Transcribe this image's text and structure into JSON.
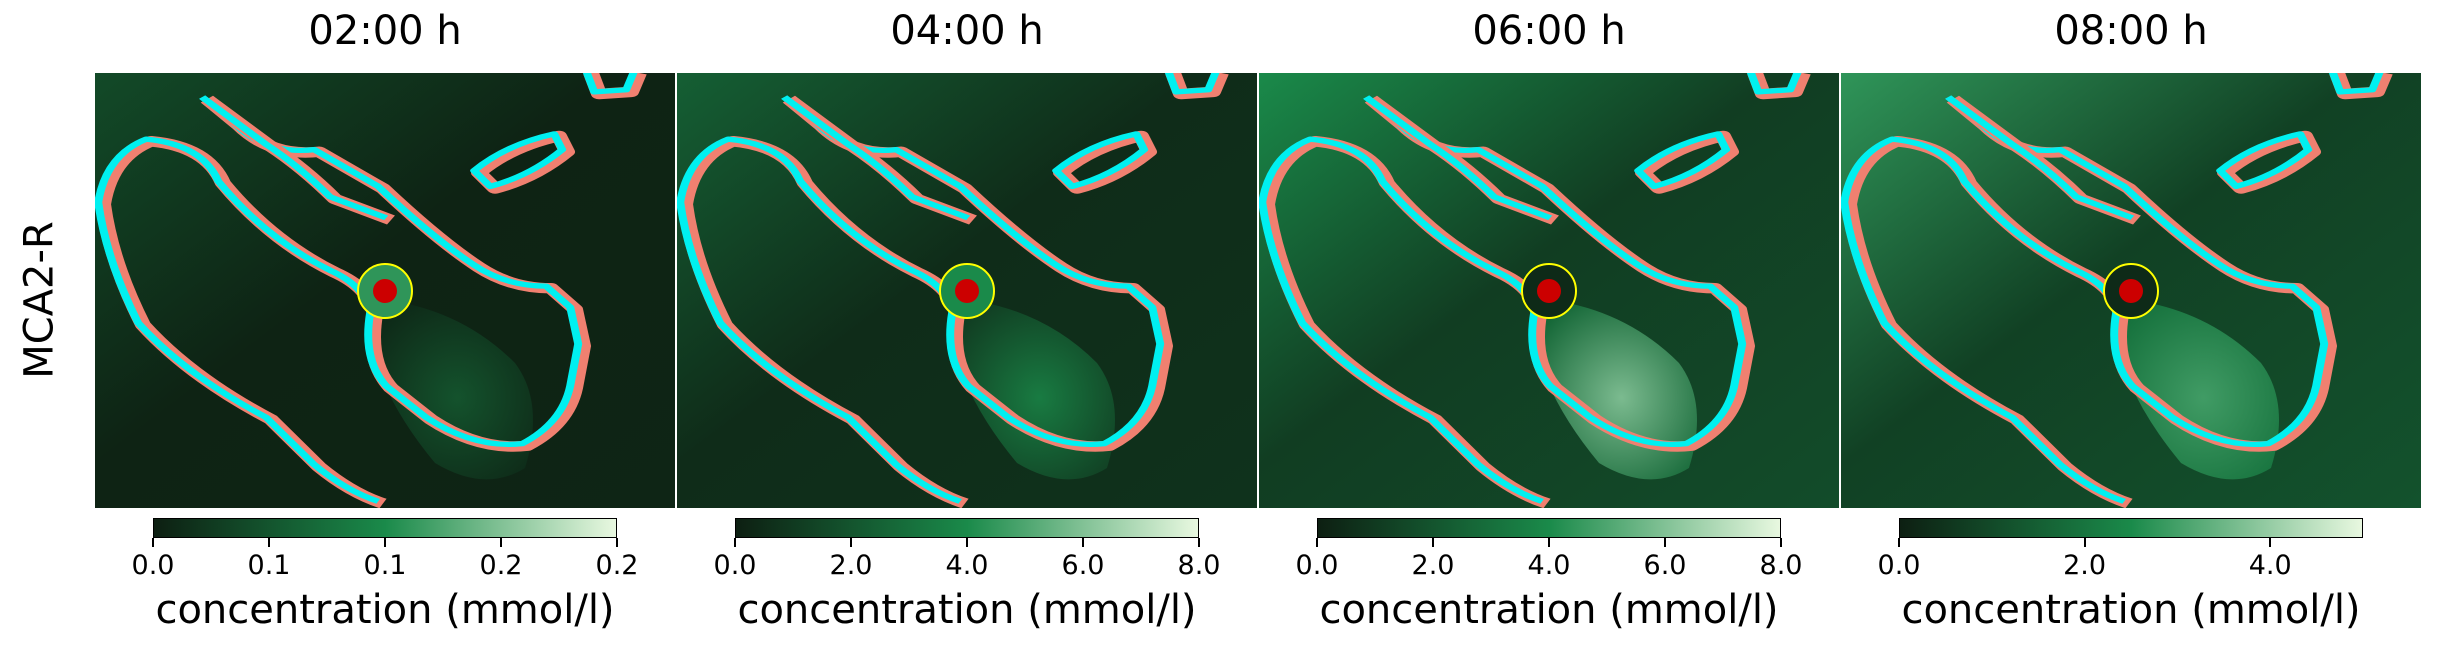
{
  "row_label": "MCA2-R",
  "colors": {
    "vessel_outer": "#f08070",
    "vessel_inner": "#00f0f0",
    "injection_point": "#cc0000",
    "injection_ring": "#ffff00",
    "cmap_low": "#0d1f12",
    "cmap_mid": "#1a8a4a",
    "cmap_high": "#e8f8e0"
  },
  "panels": [
    {
      "title": "02:00 h",
      "colorbar_label": "concentration (mmol/l)",
      "colorbar_ticks": [
        {
          "value": 0.0,
          "label": "0.0"
        },
        {
          "value": 0.05,
          "label": "0.1"
        },
        {
          "value": 0.1,
          "label": "0.1"
        },
        {
          "value": 0.15,
          "label": "0.2"
        },
        {
          "value": 0.2,
          "label": "0.2"
        }
      ],
      "colorbar_range": [
        0,
        0.2
      ],
      "background_level": 0.05,
      "plume_level": 0.25,
      "ring_level": 0.55
    },
    {
      "title": "04:00 h",
      "colorbar_label": "concentration (mmol/l)",
      "colorbar_ticks": [
        {
          "value": 0.0,
          "label": "0.0"
        },
        {
          "value": 2.0,
          "label": "2.0"
        },
        {
          "value": 4.0,
          "label": "4.0"
        },
        {
          "value": 6.0,
          "label": "6.0"
        },
        {
          "value": 8.0,
          "label": "8.0"
        }
      ],
      "colorbar_range": [
        0,
        8
      ],
      "background_level": 0.15,
      "plume_level": 0.45,
      "ring_level": 0.5
    },
    {
      "title": "06:00 h",
      "colorbar_label": "concentration (mmol/l)",
      "colorbar_ticks": [
        {
          "value": 0.0,
          "label": "0.0"
        },
        {
          "value": 2.0,
          "label": "2.0"
        },
        {
          "value": 4.0,
          "label": "4.0"
        },
        {
          "value": 6.0,
          "label": "6.0"
        },
        {
          "value": 8.0,
          "label": "8.0"
        }
      ],
      "colorbar_range": [
        0,
        8
      ],
      "background_level": 0.35,
      "plume_level": 0.75,
      "ring_level": 0.05
    },
    {
      "title": "08:00 h",
      "colorbar_label": "concentration (mmol/l)",
      "colorbar_ticks": [
        {
          "value": 0.0,
          "label": "0.0"
        },
        {
          "value": 2.0,
          "label": "2.0"
        },
        {
          "value": 4.0,
          "label": "4.0"
        }
      ],
      "colorbar_range": [
        0,
        5
      ],
      "background_level": 0.4,
      "plume_level": 0.6,
      "ring_level": 0.05
    }
  ]
}
